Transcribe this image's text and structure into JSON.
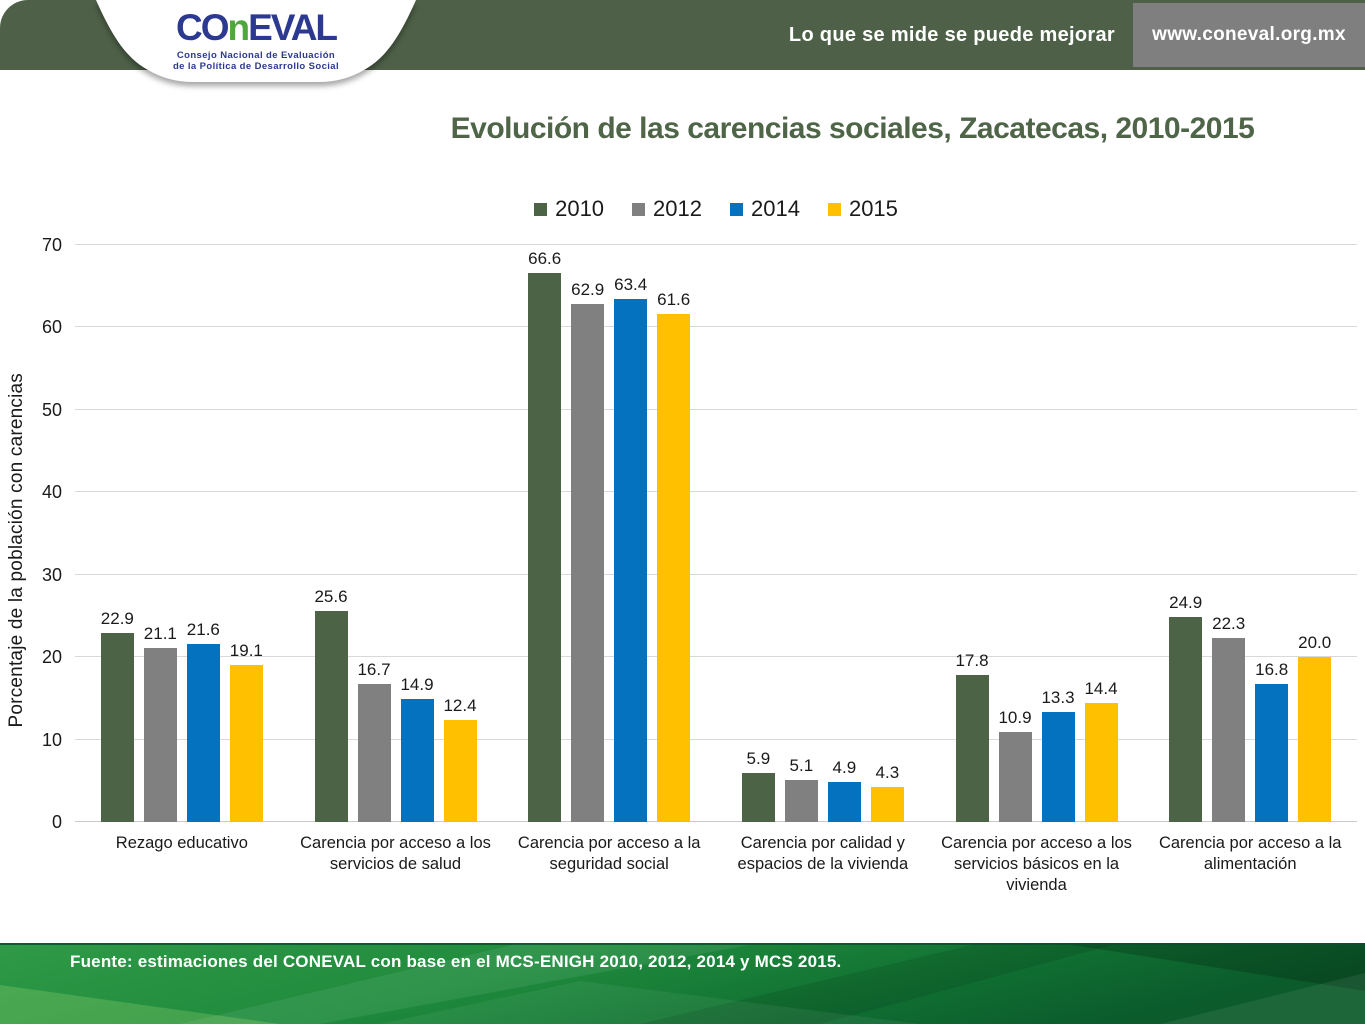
{
  "header": {
    "logo": {
      "wordmark_part1": "CO",
      "wordmark_n": "n",
      "wordmark_part2": "EVAL",
      "subtitle_line1": "Consejo Nacional de Evaluación",
      "subtitle_line2": "de la Política de Desarrollo Social"
    },
    "tagline": "Lo que se mide se puede mejorar",
    "website": "www.coneval.org.mx"
  },
  "title": "Evolución de las carencias sociales, Zacatecas, 2010-2015",
  "chart_data": {
    "type": "bar",
    "title": "Evolución de las carencias sociales, Zacatecas, 2010-2015",
    "xlabel": "",
    "ylabel": "Porcentaje de la población con carencias",
    "ylim": [
      0,
      70
    ],
    "ytick_step": 10,
    "grid": true,
    "legend_position": "top",
    "value_label_decimals": 1,
    "categories": [
      "Rezago educativo",
      "Carencia por acceso a los servicios de salud",
      "Carencia por acceso a la seguridad social",
      "Carencia por calidad y espacios de la vivienda",
      "Carencia por acceso a los servicios básicos en la vivienda",
      "Carencia por acceso a la alimentación"
    ],
    "series": [
      {
        "name": "2010",
        "color": "#4C6345",
        "values": [
          22.9,
          25.6,
          66.6,
          5.9,
          17.8,
          24.9
        ]
      },
      {
        "name": "2012",
        "color": "#808080",
        "values": [
          21.1,
          16.7,
          62.9,
          5.1,
          10.9,
          22.3
        ]
      },
      {
        "name": "2014",
        "color": "#0572BF",
        "values": [
          21.6,
          14.9,
          63.4,
          4.9,
          13.3,
          16.8
        ]
      },
      {
        "name": "2015",
        "color": "#FFC000",
        "values": [
          19.1,
          12.4,
          61.6,
          4.3,
          14.4,
          20.0
        ]
      }
    ]
  },
  "footer": {
    "source": "Fuente: estimaciones del CONEVAL con base en el MCS-ENIGH 2010, 2012, 2014 y MCS 2015."
  },
  "colors": {
    "header_band": "#4E6148",
    "title_text": "#4F6548",
    "url_box": "#7F7F7F",
    "gridline": "#D9D9D9",
    "logo_blue": "#2B3990",
    "logo_green": "#4FA83D",
    "series_2010": "#4C6345",
    "series_2012": "#808080",
    "series_2014": "#0572BF",
    "series_2015": "#FFC000"
  }
}
